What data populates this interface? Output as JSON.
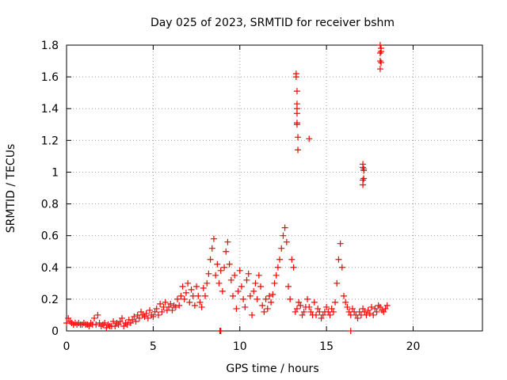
{
  "chart_data": {
    "type": "scatter",
    "title": "Day 025 of 2023, SRMTID for receiver bshm",
    "xlabel": "GPS time / hours",
    "ylabel": "SRMTID / TECUs",
    "xlim": [
      0,
      24
    ],
    "ylim": [
      0,
      1.8
    ],
    "xticks": [
      0,
      5,
      10,
      15,
      20
    ],
    "xtick_labels": [
      "0",
      "5",
      "10",
      "15",
      "20"
    ],
    "yticks": [
      0,
      0.2,
      0.4,
      0.6,
      0.8,
      1.0,
      1.2,
      1.4,
      1.6,
      1.8
    ],
    "ytick_labels": [
      "0",
      "0.2",
      "0.4",
      "0.6",
      "0.8",
      "1",
      "1.2",
      "1.4",
      "1.6",
      "1.8"
    ],
    "grid": true,
    "marker": "+",
    "color": "#ff0000",
    "series": [
      {
        "name": "SRMTID",
        "x": [
          0.0,
          0.1,
          0.2,
          0.3,
          0.4,
          0.5,
          0.6,
          0.7,
          0.8,
          0.9,
          1.0,
          1.1,
          1.2,
          1.3,
          1.4,
          1.5,
          1.6,
          1.7,
          1.8,
          1.9,
          2.0,
          2.1,
          2.2,
          2.3,
          2.4,
          2.5,
          2.6,
          2.7,
          2.8,
          2.9,
          3.0,
          3.1,
          3.2,
          3.3,
          3.4,
          3.5,
          3.6,
          3.7,
          3.8,
          3.9,
          4.0,
          4.1,
          4.2,
          4.3,
          4.4,
          4.5,
          4.6,
          4.7,
          4.8,
          4.9,
          5.0,
          5.1,
          5.2,
          5.3,
          5.4,
          5.5,
          5.6,
          5.7,
          5.8,
          5.9,
          6.0,
          6.1,
          6.2,
          6.3,
          6.4,
          6.5,
          6.6,
          6.7,
          6.8,
          6.9,
          7.0,
          7.1,
          7.2,
          7.3,
          7.4,
          7.5,
          7.6,
          7.7,
          7.8,
          7.9,
          8.0,
          8.1,
          8.2,
          8.3,
          8.4,
          8.5,
          8.6,
          8.7,
          8.8,
          8.9,
          9.0,
          9.1,
          9.2,
          9.3,
          9.4,
          9.5,
          9.6,
          9.7,
          9.8,
          9.9,
          10.0,
          10.1,
          10.2,
          10.3,
          10.4,
          10.5,
          10.6,
          10.7,
          10.8,
          10.9,
          11.0,
          11.1,
          11.2,
          11.3,
          11.4,
          11.5,
          11.6,
          11.7,
          11.8,
          11.9,
          12.0,
          12.1,
          12.2,
          12.3,
          12.4,
          12.5,
          12.6,
          12.7,
          12.8,
          12.9,
          13.0,
          13.1,
          13.2,
          13.3,
          13.4,
          13.5,
          13.6,
          13.7,
          13.8,
          13.9,
          14.0,
          14.1,
          14.2,
          14.3,
          14.4,
          14.5,
          14.6,
          14.7,
          14.8,
          14.9,
          15.0,
          15.1,
          15.2,
          15.3,
          15.4,
          15.5,
          15.6,
          15.7,
          15.8,
          15.9,
          16.0,
          16.1,
          16.2,
          16.3,
          16.4,
          16.5,
          16.6,
          16.7,
          16.8,
          16.9,
          17.0,
          17.1,
          17.2,
          17.3,
          17.4,
          17.5,
          17.6,
          17.7,
          17.8,
          17.9,
          18.0,
          18.1,
          18.2,
          18.3,
          18.4,
          18.5,
          8.85,
          8.9,
          16.4,
          13.25,
          13.25,
          13.3,
          13.3,
          13.3,
          13.3,
          13.35,
          13.35,
          13.3,
          13.3,
          14.0,
          17.1,
          17.1,
          17.15,
          17.15,
          17.15,
          17.1,
          17.1,
          18.1,
          18.15,
          18.15,
          18.1,
          18.1,
          18.15,
          18.1
        ],
        "y": [
          0.05,
          0.08,
          0.06,
          0.05,
          0.04,
          0.05,
          0.04,
          0.05,
          0.04,
          0.04,
          0.05,
          0.04,
          0.04,
          0.03,
          0.05,
          0.04,
          0.08,
          0.04,
          0.1,
          0.05,
          0.03,
          0.04,
          0.05,
          0.02,
          0.04,
          0.03,
          0.03,
          0.06,
          0.03,
          0.05,
          0.04,
          0.06,
          0.08,
          0.03,
          0.05,
          0.04,
          0.07,
          0.05,
          0.07,
          0.09,
          0.06,
          0.1,
          0.08,
          0.12,
          0.1,
          0.09,
          0.11,
          0.08,
          0.13,
          0.1,
          0.09,
          0.12,
          0.14,
          0.1,
          0.17,
          0.12,
          0.15,
          0.18,
          0.13,
          0.15,
          0.17,
          0.13,
          0.16,
          0.15,
          0.2,
          0.16,
          0.22,
          0.28,
          0.2,
          0.24,
          0.3,
          0.18,
          0.26,
          0.22,
          0.16,
          0.28,
          0.22,
          0.18,
          0.15,
          0.27,
          0.22,
          0.3,
          0.36,
          0.45,
          0.52,
          0.58,
          0.35,
          0.42,
          0.3,
          0.38,
          0.25,
          0.4,
          0.5,
          0.56,
          0.42,
          0.32,
          0.22,
          0.35,
          0.14,
          0.25,
          0.38,
          0.28,
          0.2,
          0.15,
          0.32,
          0.36,
          0.22,
          0.1,
          0.25,
          0.3,
          0.2,
          0.35,
          0.28,
          0.16,
          0.12,
          0.2,
          0.14,
          0.22,
          0.18,
          0.23,
          0.3,
          0.35,
          0.4,
          0.45,
          0.52,
          0.6,
          0.65,
          0.56,
          0.28,
          0.2,
          0.45,
          0.4,
          0.12,
          0.14,
          0.18,
          0.16,
          0.1,
          0.12,
          0.15,
          0.2,
          0.15,
          0.12,
          0.1,
          0.18,
          0.1,
          0.14,
          0.12,
          0.08,
          0.1,
          0.12,
          0.15,
          0.12,
          0.1,
          0.14,
          0.12,
          0.18,
          0.3,
          0.45,
          0.55,
          0.4,
          0.22,
          0.18,
          0.15,
          0.12,
          0.1,
          0.14,
          0.12,
          0.1,
          0.08,
          0.12,
          0.1,
          0.14,
          0.12,
          0.1,
          0.13,
          0.11,
          0.15,
          0.1,
          0.14,
          0.12,
          0.16,
          0.15,
          0.13,
          0.12,
          0.14,
          0.16,
          0.0,
          0.0,
          0.0,
          1.62,
          1.6,
          1.51,
          1.43,
          1.37,
          1.31,
          1.22,
          1.14,
          1.4,
          1.3,
          1.21,
          1.05,
          1.03,
          1.02,
          1.01,
          0.96,
          0.95,
          0.92,
          1.8,
          1.78,
          1.76,
          1.75,
          1.7,
          1.69,
          1.65
        ]
      }
    ]
  }
}
